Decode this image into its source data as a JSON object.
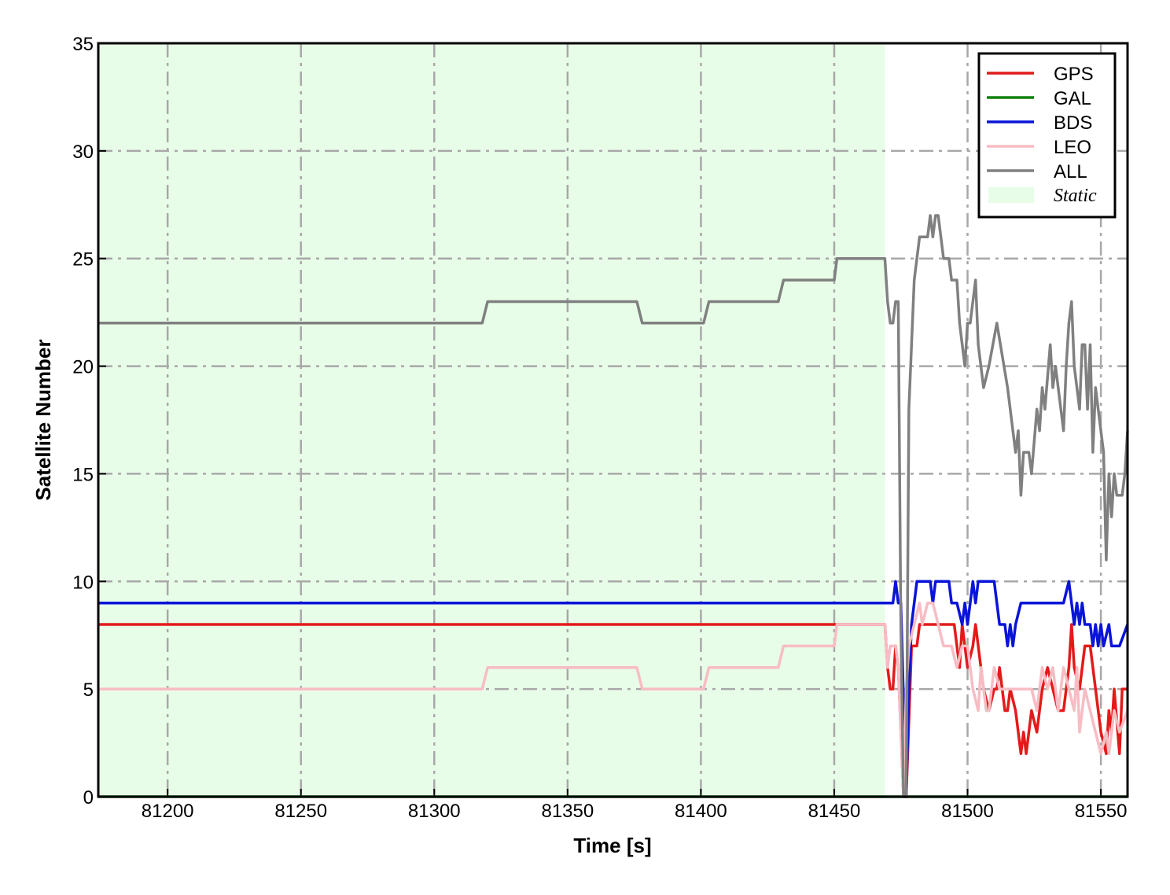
{
  "chart_data": {
    "type": "line",
    "xlabel": "Time [s]",
    "ylabel": "Satellite Number",
    "xlim": [
      81174,
      81560
    ],
    "ylim": [
      0,
      35
    ],
    "xticks": [
      81200,
      81250,
      81300,
      81350,
      81400,
      81450,
      81500,
      81550
    ],
    "yticks": [
      0,
      5,
      10,
      15,
      20,
      25,
      30,
      35
    ],
    "grid": true,
    "legend": "upper right",
    "shaded_region": {
      "name": "Static",
      "x": [
        81174,
        81469
      ],
      "color": "#e8fde8"
    },
    "series": [
      {
        "name": "GPS",
        "color": "#e41a1a",
        "x": [
          81174,
          81469,
          81470,
          81471,
          81472,
          81473,
          81474,
          81476,
          81477,
          81479,
          81481,
          81482,
          81495,
          81497,
          81498,
          81500,
          81502,
          81503,
          81505,
          81506,
          81508,
          81510,
          81511,
          81512,
          81514,
          81515,
          81516,
          81518,
          81520,
          81521,
          81522,
          81524,
          81526,
          81528,
          81530,
          81532,
          81534,
          81536,
          81538,
          81539,
          81540,
          81542,
          81544,
          81546,
          81548,
          81550,
          81552,
          81553,
          81554,
          81555,
          81557,
          81558,
          81560
        ],
        "values": [
          8,
          8,
          6,
          5,
          5,
          7,
          6,
          0,
          0,
          7,
          7,
          8,
          8,
          6,
          8,
          6,
          7,
          8,
          6,
          5,
          4,
          5,
          5,
          6,
          4,
          4,
          5,
          4,
          2,
          3,
          2,
          4,
          3,
          5,
          6,
          5,
          4,
          4,
          6,
          8,
          6,
          5,
          7,
          7,
          5,
          3,
          2,
          4,
          3,
          5,
          2,
          5,
          5
        ]
      },
      {
        "name": "GAL",
        "color": "#108010",
        "x": [
          81174,
          81560
        ],
        "values": [
          0,
          0
        ]
      },
      {
        "name": "BDS",
        "color": "#0a14d8",
        "x": [
          81174,
          81472,
          81473,
          81474,
          81475,
          81477,
          81478,
          81479,
          81480,
          81481,
          81486,
          81487,
          81488,
          81493,
          81494,
          81496,
          81498,
          81499,
          81500,
          81501,
          81502,
          81503,
          81504,
          81510,
          81512,
          81514,
          81515,
          81516,
          81517,
          81518,
          81520,
          81536,
          81538,
          81540,
          81541,
          81542,
          81543,
          81544,
          81546,
          81547,
          81548,
          81549,
          81550,
          81551,
          81553,
          81554,
          81557,
          81560
        ],
        "values": [
          9,
          9,
          10,
          9,
          9,
          0,
          5,
          8,
          9,
          10,
          10,
          9,
          10,
          10,
          9,
          9,
          8,
          9,
          8,
          9,
          10,
          9,
          10,
          10,
          8,
          8,
          7,
          8,
          7,
          8,
          9,
          9,
          10,
          8,
          9,
          8,
          9,
          8,
          8,
          7,
          8,
          7,
          8,
          7,
          8,
          7,
          7,
          8
        ]
      },
      {
        "name": "LEO",
        "color": "#f8bcc4",
        "x": [
          81174,
          81318,
          81320,
          81376,
          81378,
          81401,
          81403,
          81429,
          81431,
          81450,
          81451,
          81469,
          81470,
          81471,
          81473,
          81474,
          81476,
          81477,
          81478,
          81480,
          81482,
          81483,
          81485,
          81487,
          81489,
          81491,
          81494,
          81496,
          81498,
          81500,
          81502,
          81504,
          81505,
          81507,
          81508,
          81510,
          81512,
          81524,
          81526,
          81528,
          81530,
          81532,
          81534,
          81536,
          81538,
          81540,
          81541,
          81542,
          81544,
          81546,
          81548,
          81550,
          81552,
          81553,
          81555,
          81557,
          81560
        ],
        "values": [
          5,
          5,
          6,
          6,
          5,
          5,
          6,
          6,
          7,
          7,
          8,
          8,
          6,
          7,
          7,
          6,
          0,
          5,
          7,
          8,
          9,
          8,
          9,
          9,
          8,
          7,
          7,
          6,
          7,
          7,
          5,
          4,
          6,
          4,
          4,
          6,
          5,
          5,
          4,
          6,
          5,
          6,
          4,
          6,
          5,
          4,
          6,
          3,
          5,
          4,
          3,
          2,
          3,
          2,
          4,
          3,
          4
        ]
      },
      {
        "name": "ALL",
        "color": "#808080",
        "x": [
          81174,
          81318,
          81320,
          81376,
          81378,
          81401,
          81403,
          81429,
          81431,
          81450,
          81451,
          81469,
          81470,
          81471,
          81472,
          81473,
          81474,
          81475,
          81476,
          81477,
          81478,
          81480,
          81482,
          81485,
          81486,
          81487,
          81488,
          81489,
          81491,
          81493,
          81494,
          81496,
          81497,
          81499,
          81500,
          81501,
          81503,
          81504,
          81506,
          81508,
          81511,
          81515,
          81518,
          81519,
          81520,
          81521,
          81523,
          81524,
          81526,
          81527,
          81528,
          81529,
          81531,
          81532,
          81533,
          81534,
          81536,
          81537,
          81538,
          81539,
          81540,
          81541,
          81542,
          81543,
          81544,
          81545,
          81546,
          81547,
          81548,
          81550,
          81551,
          81552,
          81553,
          81554,
          81555,
          81556,
          81558,
          81559,
          81560
        ],
        "values": [
          22,
          22,
          23,
          23,
          22,
          22,
          23,
          23,
          24,
          24,
          25,
          25,
          23,
          22,
          22,
          23,
          23,
          8,
          0,
          0,
          18,
          24,
          26,
          26,
          27,
          26,
          27,
          27,
          25,
          25,
          24,
          24,
          22,
          20,
          22,
          22,
          24,
          21,
          19,
          20,
          22,
          19,
          16,
          17,
          14,
          16,
          16,
          15,
          18,
          17,
          19,
          18,
          21,
          19,
          20,
          19,
          17,
          20,
          22,
          23,
          20,
          19,
          18,
          21,
          21,
          18,
          21,
          16,
          19,
          17,
          16,
          11,
          15,
          13,
          15,
          14,
          14,
          15,
          17
        ]
      }
    ]
  }
}
